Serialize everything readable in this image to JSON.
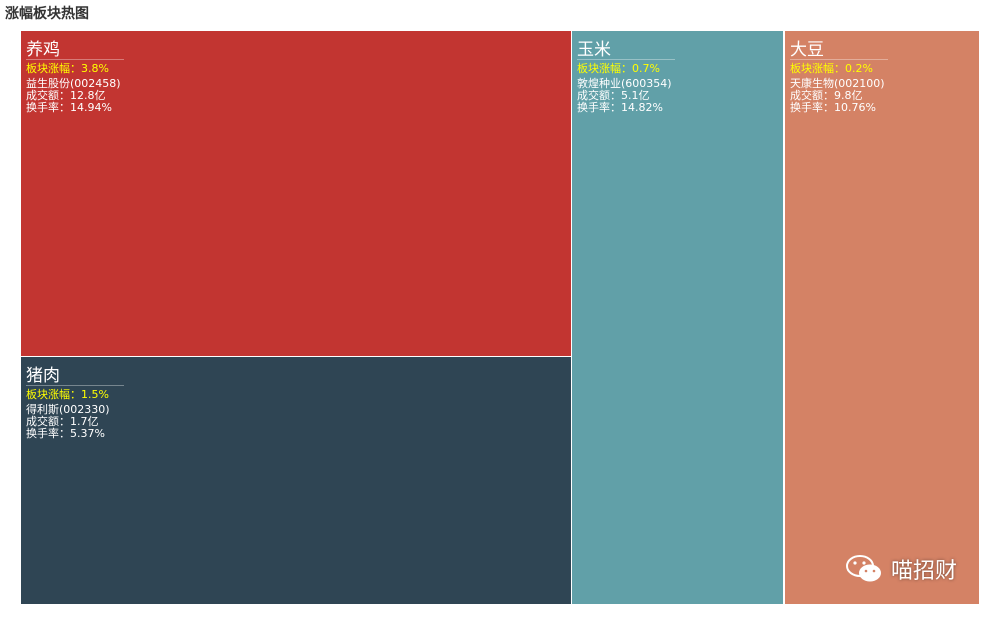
{
  "header": {
    "title": "涨幅板块热图"
  },
  "tiles": [
    {
      "name": "养鸡",
      "change": "板块涨幅：3.8%",
      "stock": "益生股份(002458)",
      "volume": "成交额：12.8亿",
      "turnover": "换手率：14.94%"
    },
    {
      "name": "猪肉",
      "change": "板块涨幅：1.5%",
      "stock": "得利斯(002330)",
      "volume": "成交额：1.7亿",
      "turnover": "换手率：5.37%"
    },
    {
      "name": "玉米",
      "change": "板块涨幅：0.7%",
      "stock": "敦煌种业(600354)",
      "volume": "成交额：5.1亿",
      "turnover": "换手率：14.82%"
    },
    {
      "name": "大豆",
      "change": "板块涨幅：0.2%",
      "stock": "天康生物(002100)",
      "volume": "成交额：9.8亿",
      "turnover": "换手率：10.76%"
    }
  ],
  "watermark": "喵招财"
}
